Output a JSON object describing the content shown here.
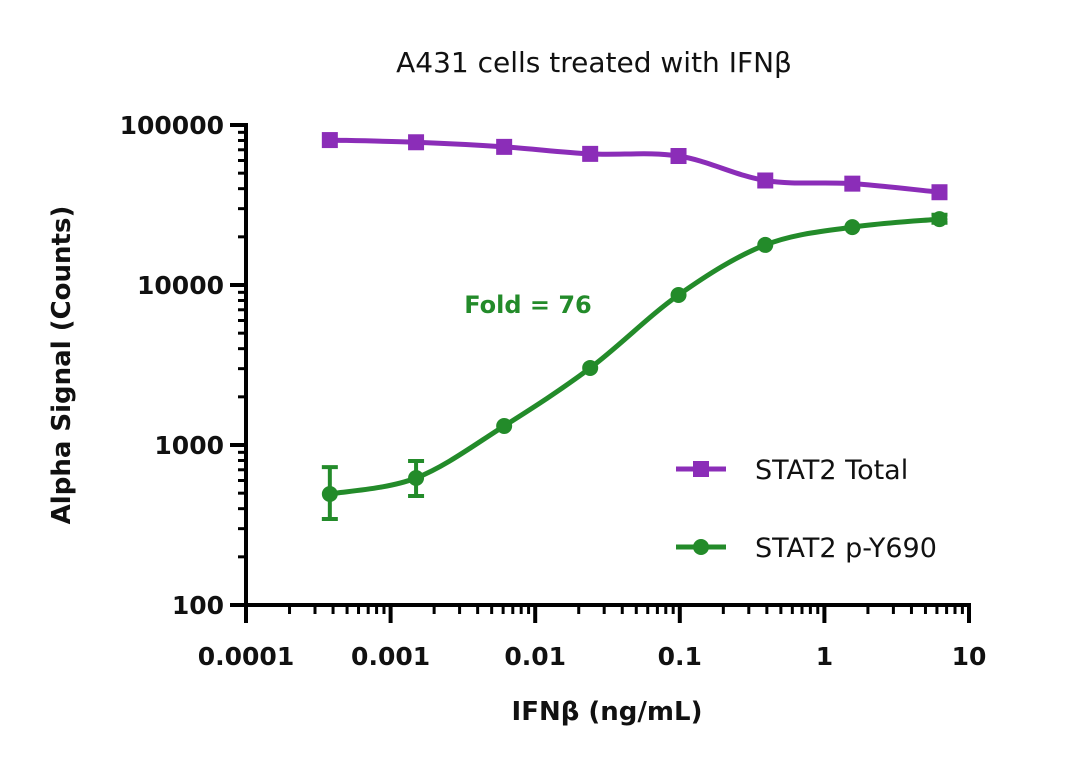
{
  "chart_data": {
    "type": "scatter",
    "title": "A431 cells treated with IFNβ",
    "xlabel": "IFNβ (ng/mL)",
    "ylabel": "Alpha Signal (Counts)",
    "xscale": "log",
    "yscale": "log",
    "xlim": [
      0.0001,
      10
    ],
    "ylim": [
      100,
      100000
    ],
    "xticks": [
      "0.0001",
      "0.001",
      "0.01",
      "0.1",
      "1",
      "10"
    ],
    "yticks": [
      "100",
      "1000",
      "10000",
      "100000"
    ],
    "grid": false,
    "legend_position": "bottom-right",
    "annotation": "Fold = 76",
    "x": [
      0.00038,
      0.0015,
      0.0061,
      0.024,
      0.098,
      0.39,
      1.56,
      6.25
    ],
    "series": [
      {
        "name": "STAT2 Total",
        "color": "#8B2DB8",
        "marker": "square",
        "values": [
          80500,
          78000,
          73000,
          66000,
          64000,
          45000,
          43000,
          38000
        ],
        "error": [
          null,
          null,
          null,
          null,
          null,
          null,
          null,
          null
        ]
      },
      {
        "name": "STAT2 p-Y690",
        "color": "#238B2A",
        "marker": "circle",
        "values": [
          494,
          622,
          1315,
          3030,
          8660,
          17800,
          23000,
          25800
        ],
        "error": [
          [
            345,
            727
          ],
          [
            480,
            795
          ],
          null,
          null,
          null,
          null,
          null,
          [
            24500,
            27500
          ]
        ]
      }
    ]
  }
}
